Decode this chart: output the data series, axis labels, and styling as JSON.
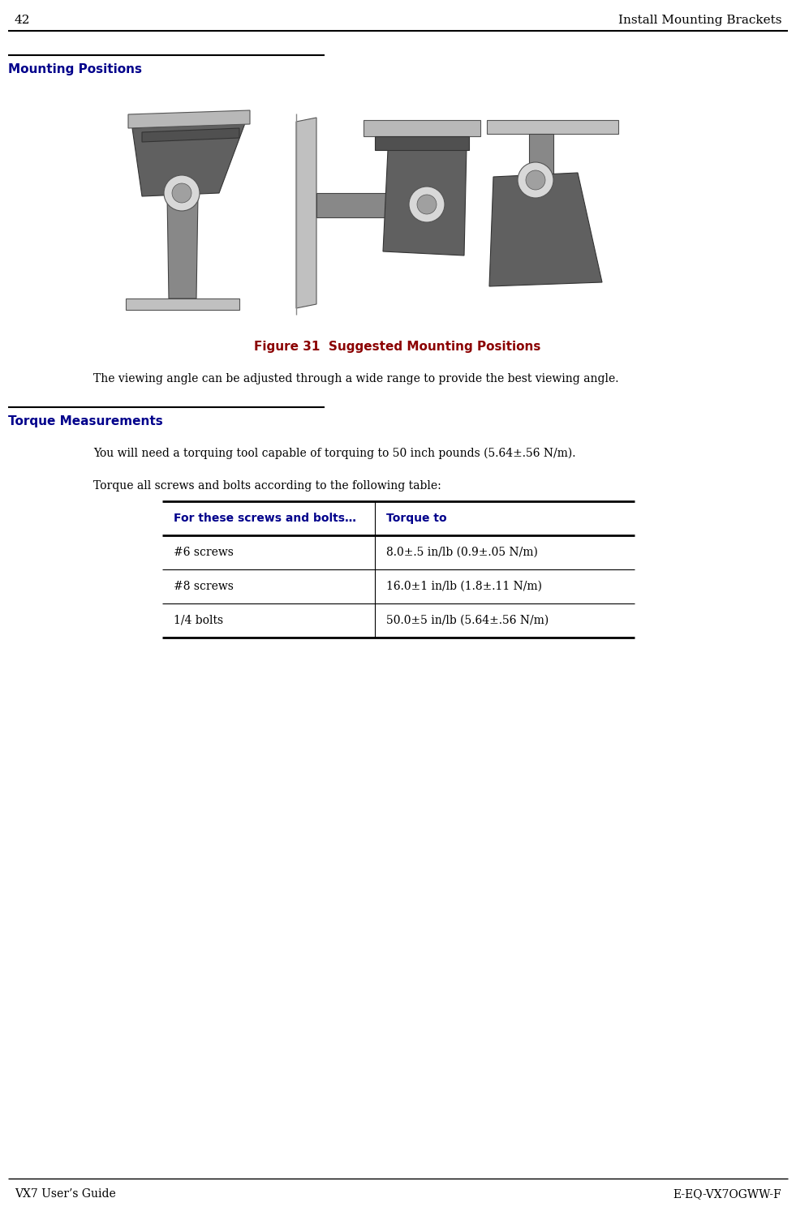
{
  "page_number": "42",
  "header_right": "Install Mounting Brackets",
  "footer_left": "VX7 User’s Guide",
  "footer_right": "E-EQ-VX7OGWW-F",
  "section_title": "Mounting Positions",
  "figure_caption": "Figure 31  Suggested Mounting Positions",
  "figure_caption_color": "#8B0000",
  "viewing_angle_text": "The viewing angle can be adjusted through a wide range to provide the best viewing angle.",
  "torque_section_title": "Torque Measurements",
  "torque_section_color": "#00008B",
  "torque_intro1": "You will need a torquing tool capable of torquing to 50 inch pounds (5.64±.56 N/m).",
  "torque_intro2": "Torque all screws and bolts according to the following table:",
  "table_header_col1": "For these screws and bolts…",
  "table_header_col2": "Torque to",
  "table_header_color": "#00008B",
  "table_rows": [
    [
      "#6 screws",
      "8.0±.5 in/lb (0.9±.05 N/m)"
    ],
    [
      "#8 screws",
      "16.0±1 in/lb (1.8±.11 N/m)"
    ],
    [
      "1/4 bolts",
      "50.0±5 in/lb (5.64±.56 N/m)"
    ]
  ],
  "bg_color": "#ffffff",
  "text_color": "#000000",
  "header_line_color": "#000000",
  "section_line_color": "#000000",
  "table_line_color": "#000000",
  "font_size_header": 11,
  "font_size_body": 10,
  "font_size_section": 11,
  "font_size_caption": 11,
  "font_size_page_num": 11
}
